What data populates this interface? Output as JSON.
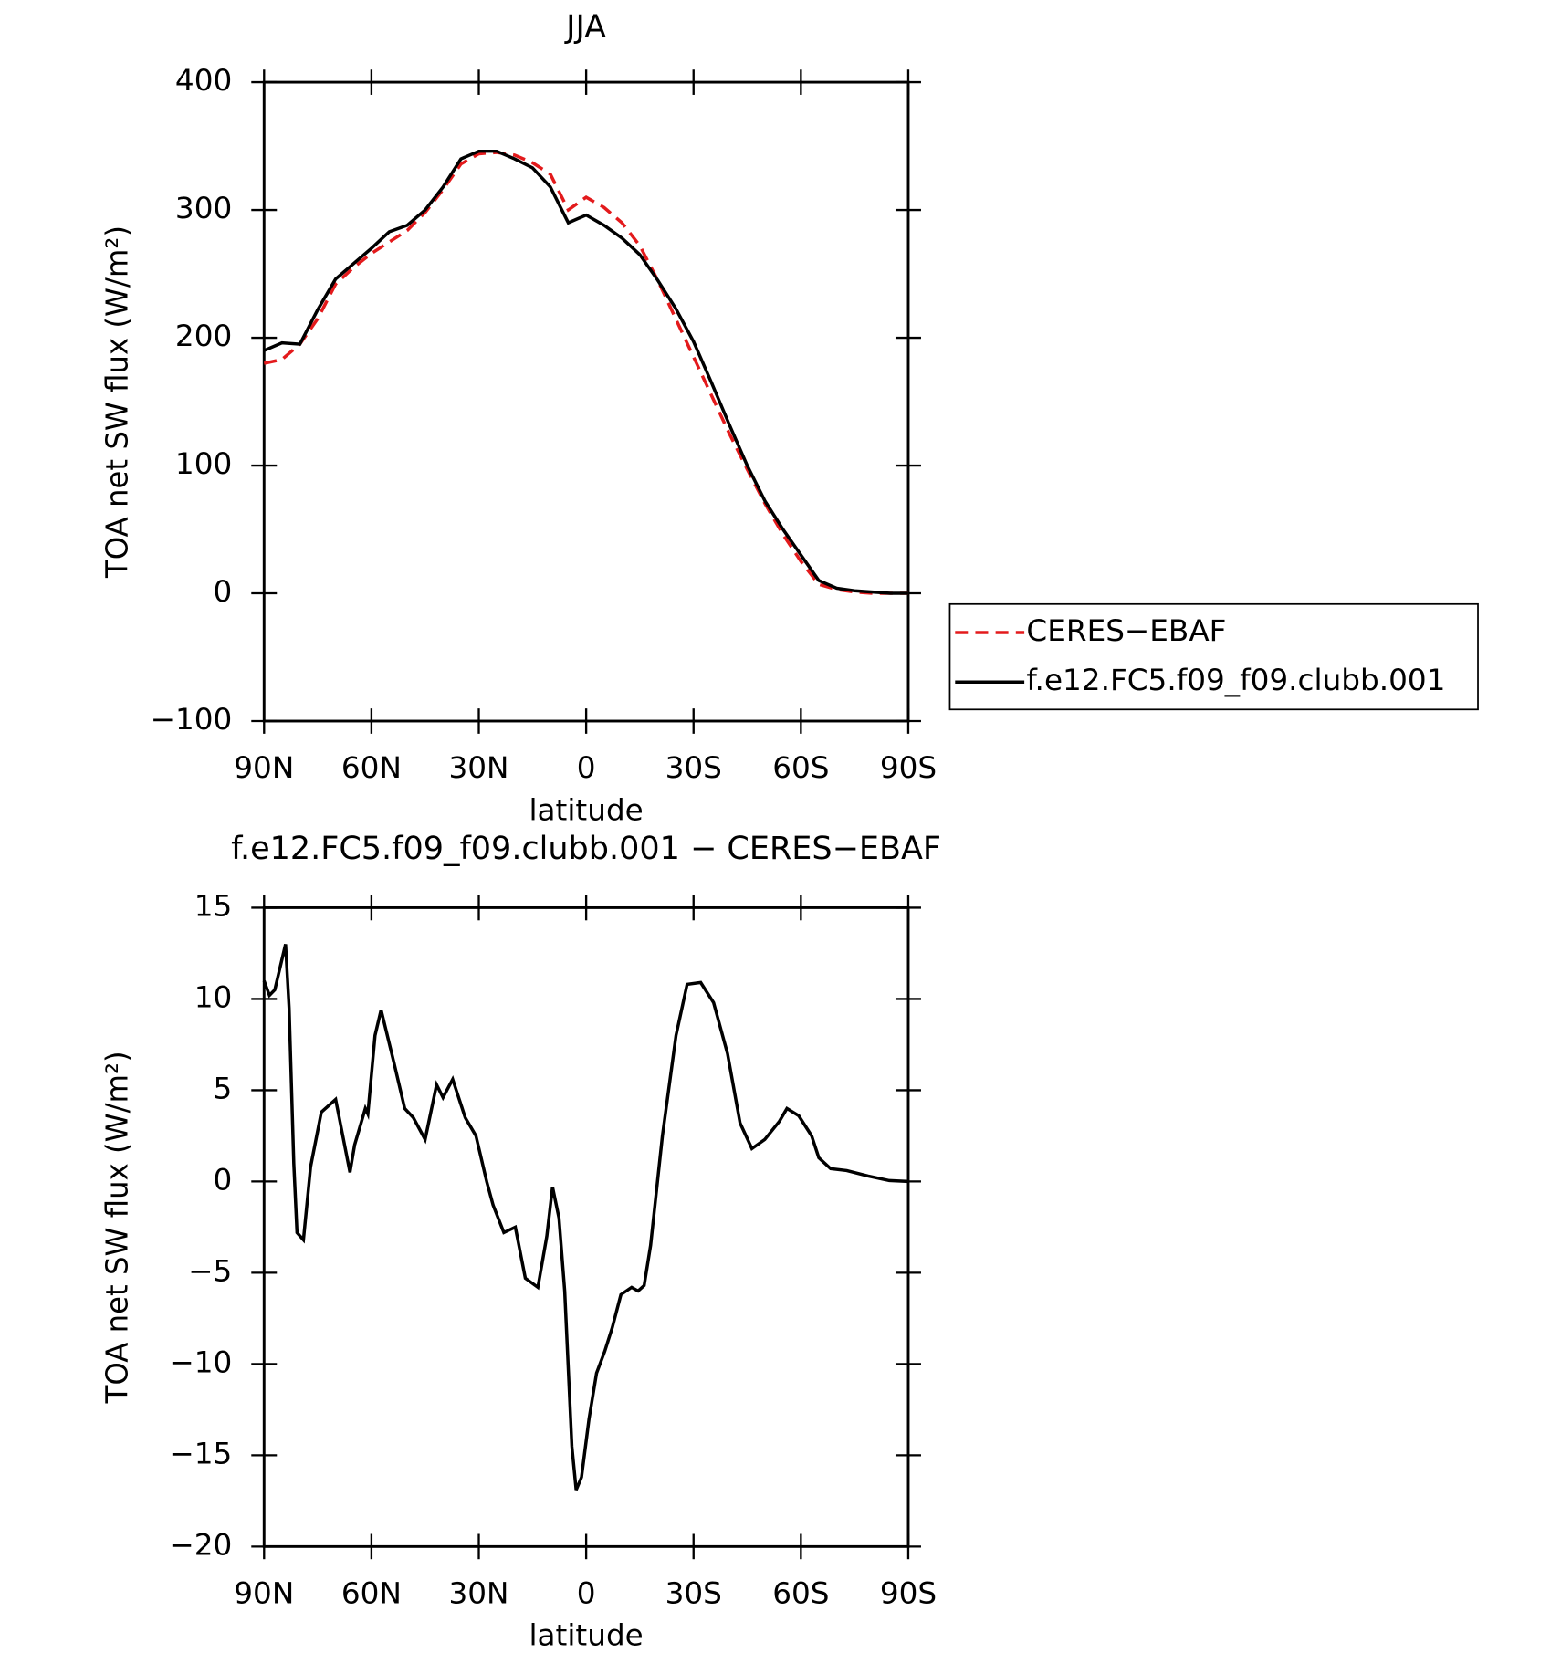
{
  "chart_data": [
    {
      "type": "line",
      "title": "JJA",
      "xlabel": "latitude",
      "ylabel": "TOA net SW flux (W/m²)",
      "xlim": [
        90,
        -90
      ],
      "xticks": [
        {
          "value": 90,
          "label": "90N"
        },
        {
          "value": 60,
          "label": "60N"
        },
        {
          "value": 30,
          "label": "30N"
        },
        0,
        {
          "value": -30,
          "label": "30S"
        },
        {
          "value": -60,
          "label": "60S"
        },
        {
          "value": -90,
          "label": "90S"
        }
      ],
      "ylim": [
        -100,
        400
      ],
      "yticks": [
        {
          "value": -100,
          "label": "−100"
        },
        0,
        100,
        200,
        300,
        400
      ],
      "legend": "right",
      "x": [
        90,
        85,
        80,
        75,
        70,
        65,
        60,
        55,
        50,
        45,
        40,
        35,
        30,
        25,
        20,
        15,
        10,
        5,
        0,
        -5,
        -10,
        -15,
        -20,
        -25,
        -30,
        -35,
        -40,
        -45,
        -50,
        -55,
        -60,
        -65,
        -70,
        -75,
        -80,
        -85,
        -90
      ],
      "series": [
        {
          "name": "CERES−EBAF",
          "color": "#e31a1c",
          "dash": "dashed",
          "values": [
            180,
            183,
            195,
            215,
            242,
            255,
            266,
            275,
            284,
            298,
            316,
            336,
            344,
            345,
            343,
            337,
            328,
            300,
            310,
            302,
            290,
            272,
            245,
            215,
            185,
            155,
            125,
            97,
            70,
            46,
            25,
            7,
            3,
            1,
            0,
            0,
            0
          ]
        },
        {
          "name": "f.e12.FC5.f09_f09.clubb.001",
          "color": "#000000",
          "dash": "solid",
          "values": [
            190,
            196,
            195,
            222,
            246,
            258,
            270,
            283,
            288,
            300,
            318,
            340,
            346,
            346,
            340,
            333,
            318,
            290,
            296,
            288,
            278,
            265,
            245,
            223,
            197,
            165,
            132,
            100,
            72,
            50,
            30,
            10,
            4,
            2,
            1,
            0,
            0
          ]
        }
      ]
    },
    {
      "type": "line",
      "title": "f.e12.FC5.f09_f09.clubb.001 − CERES−EBAF",
      "xlabel": "latitude",
      "ylabel": "TOA net SW flux (W/m²)",
      "xlim": [
        90,
        -90
      ],
      "xticks": [
        {
          "value": 90,
          "label": "90N"
        },
        {
          "value": 60,
          "label": "60N"
        },
        {
          "value": 30,
          "label": "30N"
        },
        0,
        {
          "value": -30,
          "label": "30S"
        },
        {
          "value": -60,
          "label": "60S"
        },
        {
          "value": -90,
          "label": "90S"
        }
      ],
      "ylim": [
        -20,
        15
      ],
      "yticks": [
        {
          "value": -20,
          "label": "−20"
        },
        {
          "value": -15,
          "label": "−15"
        },
        {
          "value": -10,
          "label": "−10"
        },
        {
          "value": -5,
          "label": "−5"
        },
        0,
        5,
        10,
        15
      ],
      "x": [
        90,
        88.5,
        87,
        84,
        83,
        81.7,
        80.8,
        79,
        77,
        74,
        70,
        66,
        64.7,
        61.7,
        61,
        59,
        57.3,
        53.7,
        50.7,
        48.3,
        45,
        41.8,
        40,
        37.3,
        33.8,
        30.8,
        27.8,
        26,
        23,
        19.8,
        17,
        13.5,
        11,
        9.4,
        7.6,
        6,
        4,
        2.8,
        1.3,
        -0.8,
        -2.9,
        -5.2,
        -7.3,
        -9.7,
        -12.7,
        -14.5,
        -16.2,
        -18,
        -21.3,
        -25.1,
        -28.2,
        -32,
        -35.6,
        -39.5,
        -43,
        -46.3,
        -49.9,
        -54,
        -56.1,
        -59.4,
        -63,
        -65,
        -68.3,
        -72.8,
        -78.8,
        -84.7,
        -90
      ],
      "series": [
        {
          "color": "#000000",
          "dash": "solid",
          "values": [
            11,
            10.2,
            10.5,
            13,
            9.5,
            1,
            -2.8,
            -3.2,
            0.8,
            3.8,
            4.5,
            0.5,
            2,
            4,
            3.7,
            8,
            9.4,
            6.5,
            4,
            3.5,
            2.3,
            5.3,
            4.6,
            5.6,
            3.5,
            2.5,
            0,
            -1.3,
            -2.8,
            -2.5,
            -5.3,
            -5.8,
            -3,
            -0.3,
            -2,
            -6,
            -14.5,
            -16.9,
            -16.2,
            -13,
            -10.5,
            -9.3,
            -8,
            -6.2,
            -5.8,
            -6,
            -5.7,
            -3.5,
            2.5,
            8,
            10.8,
            10.9,
            9.8,
            7,
            3.2,
            1.8,
            2.3,
            3.3,
            4,
            3.6,
            2.5,
            1.3,
            0.7,
            0.6,
            0.3,
            0.05,
            0
          ]
        }
      ]
    }
  ]
}
